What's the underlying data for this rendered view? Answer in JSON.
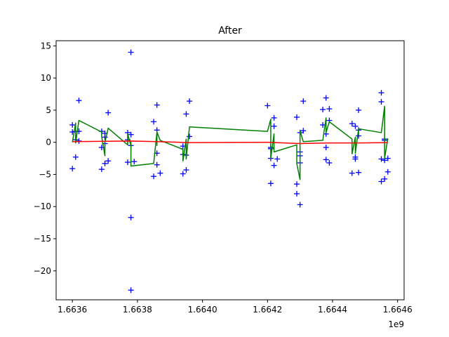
{
  "chart_data": {
    "type": "scatter",
    "title": "After",
    "xlabel": "",
    "ylabel": "",
    "x_offset_label": "1e9",
    "xlim": [
      1.66355,
      1.66462
    ],
    "ylim": [
      -24.5,
      15.8
    ],
    "x_ticks": [
      1.6636,
      1.6638,
      1.664,
      1.6642,
      1.6644,
      1.6646
    ],
    "x_tick_labels": [
      "1.6636",
      "1.6638",
      "1.6640",
      "1.6642",
      "1.6644",
      "1.6646"
    ],
    "y_ticks": [
      -20,
      -15,
      -10,
      -5,
      0,
      5,
      10,
      15
    ],
    "y_tick_labels": [
      "−20",
      "−15",
      "−10",
      "−5",
      "0",
      "5",
      "10",
      "15"
    ],
    "grid": false,
    "series": [
      {
        "kind": "scatter",
        "marker": "+",
        "color": "#0000ff",
        "points": [
          [
            1.6636,
            2.7
          ],
          [
            1.6636,
            1.6
          ],
          [
            1.6636,
            -4.1
          ],
          [
            1.66361,
            -2.3
          ],
          [
            1.66361,
            0.4
          ],
          [
            1.66361,
            1.7
          ],
          [
            1.66362,
            6.5
          ],
          [
            1.66362,
            1.7
          ],
          [
            1.66362,
            0.2
          ],
          [
            1.66369,
            -0.8
          ],
          [
            1.66369,
            1.7
          ],
          [
            1.66369,
            -4.2
          ],
          [
            1.6637,
            -3.3
          ],
          [
            1.6637,
            0.8
          ],
          [
            1.6637,
            -0.2
          ],
          [
            1.6637,
            1.4
          ],
          [
            1.66371,
            4.6
          ],
          [
            1.66371,
            -2.9
          ],
          [
            1.66377,
            0.4
          ],
          [
            1.66377,
            -3.1
          ],
          [
            1.66377,
            1.5
          ],
          [
            1.66378,
            1.2
          ],
          [
            1.66378,
            -0.5
          ],
          [
            1.66378,
            14.0
          ],
          [
            1.66378,
            -11.7
          ],
          [
            1.66378,
            -23.0
          ],
          [
            1.66379,
            -3.0
          ],
          [
            1.66385,
            3.2
          ],
          [
            1.66385,
            -5.3
          ],
          [
            1.66386,
            1.9
          ],
          [
            1.66386,
            -1.7
          ],
          [
            1.66386,
            5.8
          ],
          [
            1.66386,
            -3.5
          ],
          [
            1.66387,
            -4.8
          ],
          [
            1.66394,
            -0.6
          ],
          [
            1.66394,
            -1.9
          ],
          [
            1.66394,
            -4.9
          ],
          [
            1.66395,
            4.4
          ],
          [
            1.66395,
            -2.0
          ],
          [
            1.66395,
            -4.3
          ],
          [
            1.66396,
            6.4
          ],
          [
            1.66396,
            0.9
          ],
          [
            1.6642,
            5.7
          ],
          [
            1.66421,
            -0.8
          ],
          [
            1.66421,
            -6.4
          ],
          [
            1.66421,
            -1.0
          ],
          [
            1.66421,
            -2.5
          ],
          [
            1.66422,
            -3.6
          ],
          [
            1.66422,
            3.8
          ],
          [
            1.66422,
            2.5
          ],
          [
            1.66423,
            -2.6
          ],
          [
            1.66429,
            3.9
          ],
          [
            1.66429,
            -6.5
          ],
          [
            1.66429,
            -8.0
          ],
          [
            1.6643,
            -9.7
          ],
          [
            1.6643,
            1.5
          ],
          [
            1.6643,
            -1.5
          ],
          [
            1.6643,
            -2.1
          ],
          [
            1.6643,
            -3.2
          ],
          [
            1.66431,
            6.4
          ],
          [
            1.66431,
            1.8
          ],
          [
            1.66437,
            2.7
          ],
          [
            1.66437,
            5.1
          ],
          [
            1.66438,
            1.3
          ],
          [
            1.66438,
            6.9
          ],
          [
            1.66438,
            -2.7
          ],
          [
            1.66438,
            -0.8
          ],
          [
            1.66439,
            5.2
          ],
          [
            1.66439,
            3.4
          ],
          [
            1.66439,
            -3.2
          ],
          [
            1.66446,
            2.9
          ],
          [
            1.66446,
            -4.8
          ],
          [
            1.66447,
            2.5
          ],
          [
            1.66447,
            -2.3
          ],
          [
            1.66447,
            -2.6
          ],
          [
            1.66448,
            -4.7
          ],
          [
            1.66448,
            5.0
          ],
          [
            1.66448,
            1.9
          ],
          [
            1.66448,
            1.0
          ],
          [
            1.66455,
            7.7
          ],
          [
            1.66455,
            6.3
          ],
          [
            1.66455,
            -2.6
          ],
          [
            1.66455,
            -6.1
          ],
          [
            1.66456,
            -5.7
          ],
          [
            1.66456,
            0.5
          ],
          [
            1.66456,
            0.3
          ],
          [
            1.66456,
            -2.8
          ],
          [
            1.66457,
            -2.5
          ],
          [
            1.66457,
            -4.6
          ]
        ]
      },
      {
        "kind": "line",
        "color": "#008000",
        "points": [
          [
            1.6636,
            0.0
          ],
          [
            1.66361,
            3.0
          ],
          [
            1.66361,
            -0.1
          ],
          [
            1.66362,
            3.4
          ],
          [
            1.66369,
            1.6
          ],
          [
            1.66369,
            0.9
          ],
          [
            1.6637,
            -2.1
          ],
          [
            1.6637,
            0.0
          ],
          [
            1.66371,
            2.2
          ],
          [
            1.66377,
            -0.4
          ],
          [
            1.66377,
            1.3
          ],
          [
            1.66378,
            -0.5
          ],
          [
            1.66378,
            0.0
          ],
          [
            1.66378,
            -3.7
          ],
          [
            1.66385,
            -3.3
          ],
          [
            1.66386,
            1.6
          ],
          [
            1.66386,
            -0.5
          ],
          [
            1.66386,
            1.6
          ],
          [
            1.66387,
            0.3
          ],
          [
            1.66394,
            -1.1
          ],
          [
            1.66394,
            -2.9
          ],
          [
            1.66395,
            0.5
          ],
          [
            1.66395,
            -2.6
          ],
          [
            1.66396,
            2.4
          ],
          [
            1.6642,
            1.7
          ],
          [
            1.66421,
            3.6
          ],
          [
            1.66421,
            0.3
          ],
          [
            1.66421,
            -2.5
          ],
          [
            1.66422,
            1.3
          ],
          [
            1.66422,
            -1.5
          ],
          [
            1.66429,
            -0.4
          ],
          [
            1.66429,
            -3.3
          ],
          [
            1.6643,
            -5.8
          ],
          [
            1.6643,
            0.0
          ],
          [
            1.6643,
            1.8
          ],
          [
            1.66431,
            0.1
          ],
          [
            1.66437,
            0.3
          ],
          [
            1.66438,
            3.8
          ],
          [
            1.66438,
            1.5
          ],
          [
            1.66439,
            3.2
          ],
          [
            1.66446,
            0.5
          ],
          [
            1.66446,
            -1.8
          ],
          [
            1.66447,
            0.8
          ],
          [
            1.66447,
            -1.7
          ],
          [
            1.66448,
            2.1
          ],
          [
            1.66455,
            1.5
          ],
          [
            1.66456,
            5.6
          ],
          [
            1.66456,
            -0.5
          ],
          [
            1.66456,
            -2.5
          ],
          [
            1.66457,
            0.6
          ]
        ]
      },
      {
        "kind": "line",
        "color": "#ff0000",
        "points": [
          [
            1.6636,
            0.1
          ],
          [
            1.6637,
            0.15
          ],
          [
            1.66378,
            0.2
          ],
          [
            1.66386,
            0.1
          ],
          [
            1.66396,
            -0.05
          ],
          [
            1.6642,
            0.0
          ],
          [
            1.6643,
            -0.2
          ],
          [
            1.66438,
            -0.1
          ],
          [
            1.66448,
            -0.1
          ],
          [
            1.66457,
            -0.05
          ]
        ]
      }
    ]
  }
}
